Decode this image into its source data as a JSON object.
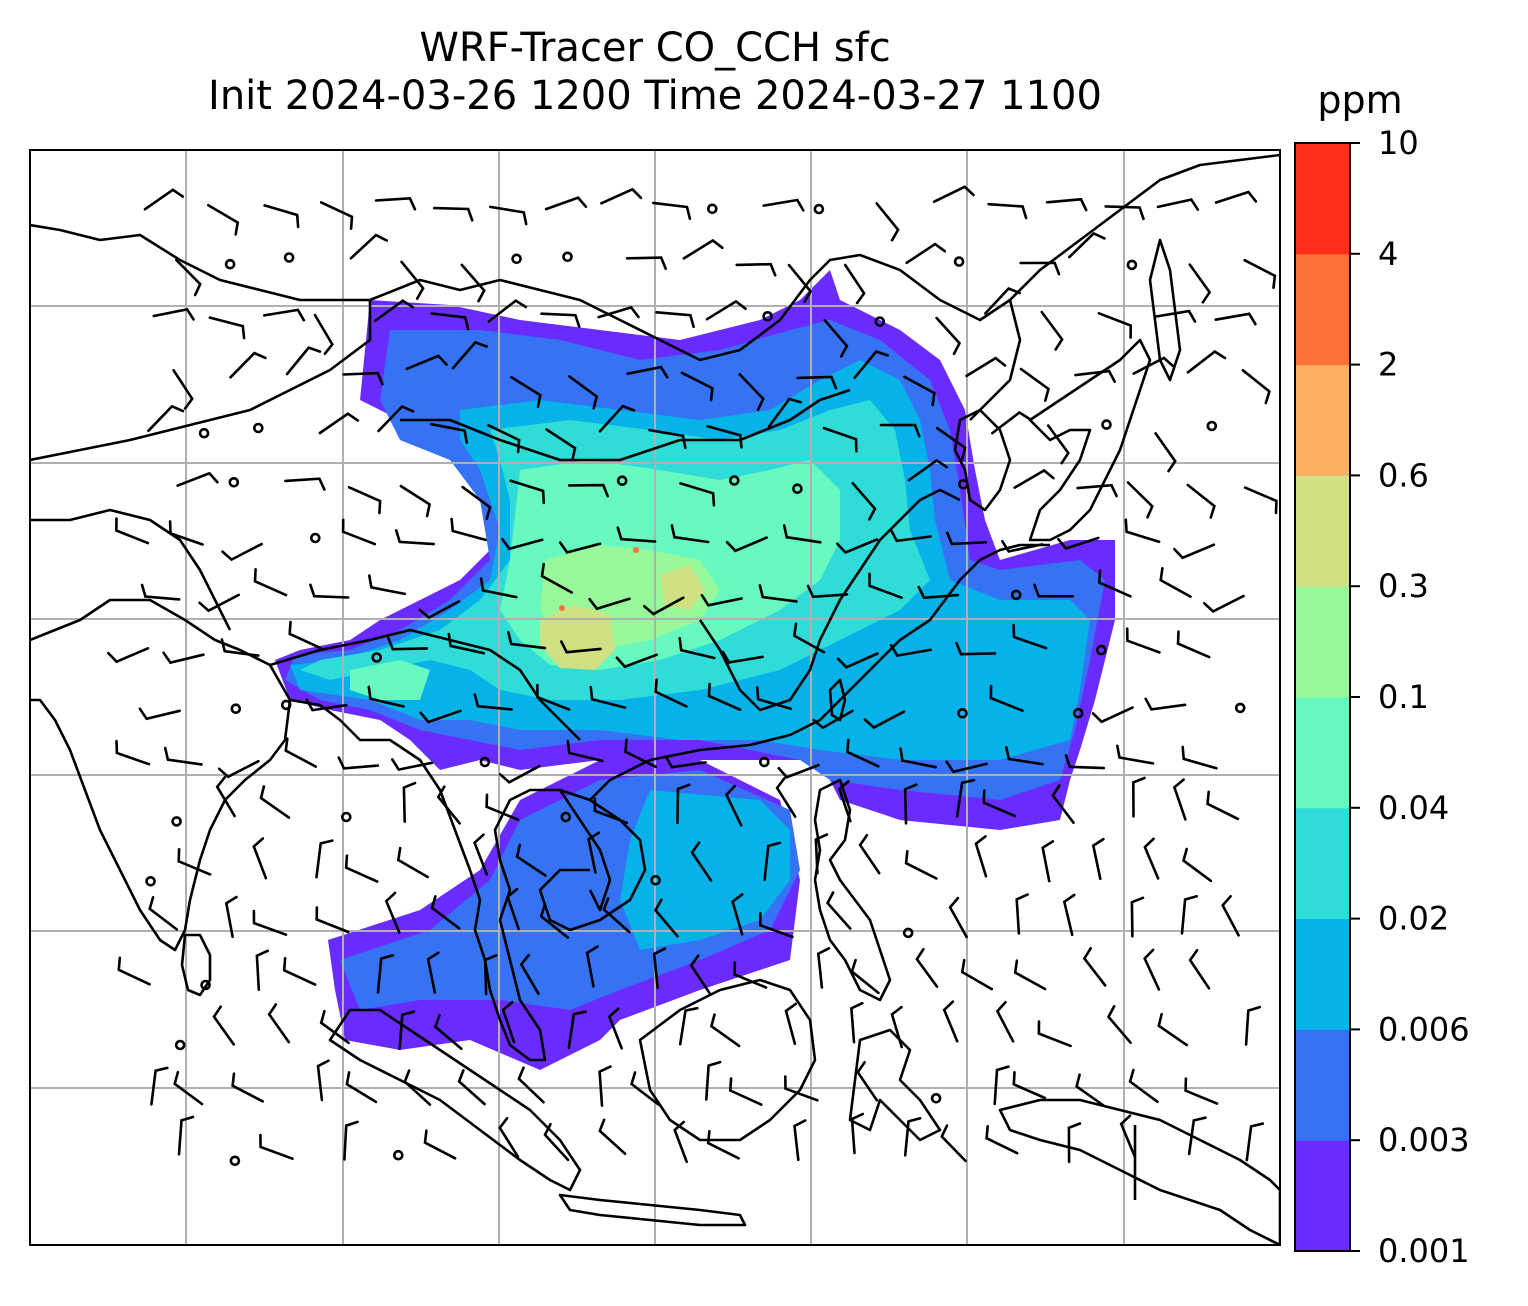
{
  "title": {
    "line1": "WRF-Tracer CO_CCH sfc",
    "line2": "Init 2024-03-26 1200 Time 2024-03-27 1100"
  },
  "colorbar": {
    "unit": "ppm",
    "ticks": [
      "0.001",
      "0.003",
      "0.006",
      "0.02",
      "0.04",
      "0.1",
      "0.3",
      "0.6",
      "2",
      "4",
      "10"
    ],
    "colors": [
      "#6a2bff",
      "#3572f4",
      "#06b2e8",
      "#2fdcd7",
      "#67f9c0",
      "#98f99a",
      "#d0e184",
      "#fdb062",
      "#ff723a",
      "#ff2e19"
    ]
  },
  "map": {
    "field_colors": {
      "low": "#6a2bff",
      "low_mid": "#3572f4",
      "mid": "#06b2e8",
      "mid_high": "#2fdcd7",
      "high": "#67f9c0",
      "higher": "#98f99a",
      "peak": "#d0e184",
      "hot": "#ff723a"
    },
    "coastline_color": "#000000",
    "gridline_color": "#b0b0b0"
  }
}
